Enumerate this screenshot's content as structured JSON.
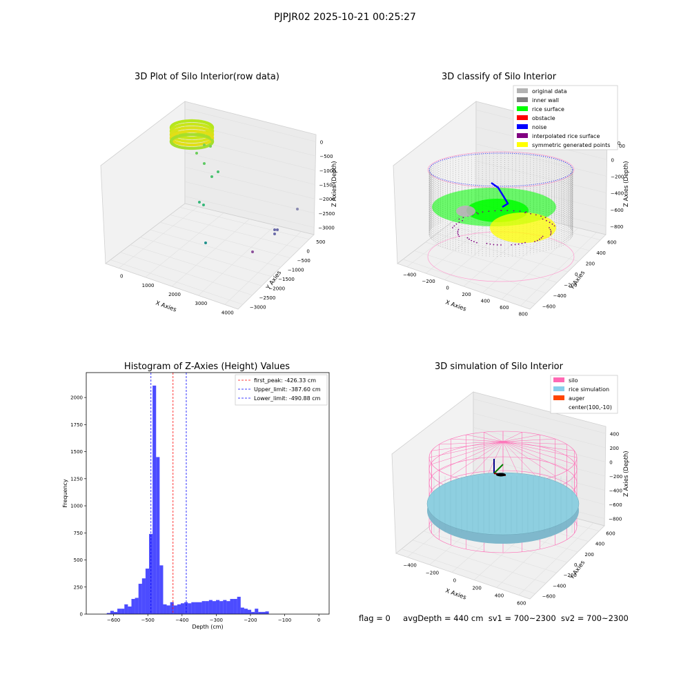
{
  "suptitle": "PJPJR02 2025-10-21 00:25:27",
  "plots": {
    "raw": {
      "title": "3D Plot of Silo Interior(row data)",
      "xlabel": "X Axies",
      "ylabel": "Y Axies",
      "zlabel": "Z Axies (Depth)",
      "xticks": [
        "0",
        "1000",
        "2000",
        "3000",
        "4000"
      ],
      "yticks": [
        "500",
        "0",
        "−500",
        "−1000",
        "−1500",
        "−2000",
        "−2500",
        "−3000"
      ],
      "zticks": [
        "0",
        "−500",
        "−1000",
        "−1500",
        "−2000",
        "−2500",
        "−3000"
      ]
    },
    "classify": {
      "title": "3D classify of Silo Interior",
      "xlabel": "X Axies",
      "ylabel": "Y Axies",
      "zlabel": "Z Axies (Depth)",
      "xticks": [
        "−400",
        "−200",
        "0",
        "200",
        "400",
        "600",
        "800"
      ],
      "yticks": [
        "600",
        "400",
        "200",
        "0",
        "−200",
        "−400",
        "−600"
      ],
      "zticks": [
        "200",
        "0",
        "−200",
        "−400",
        "−600",
        "−800"
      ],
      "ztick_top": "00",
      "legend": [
        {
          "label": "original data",
          "color": "#b3b3b3"
        },
        {
          "label": "inner wall",
          "color": "#808080"
        },
        {
          "label": "rice surface",
          "color": "#00ff00"
        },
        {
          "label": "obstacle",
          "color": "#ff0000"
        },
        {
          "label": "noise",
          "color": "#0000ff"
        },
        {
          "label": "interpolated rice surface",
          "color": "#800080"
        },
        {
          "label": "symmetric generated points",
          "color": "#ffff00"
        }
      ]
    },
    "histogram": {
      "title": "Histogram of Z-Axies (Height) Values",
      "xlabel": "Depth (cm)",
      "ylabel": "Frequency",
      "legend": [
        {
          "label": "first_peak: -426.33 cm",
          "color": "#ff0000"
        },
        {
          "label": "Upper_limit: -387.60 cm",
          "color": "#0000ff"
        },
        {
          "label": "Lower_limit: -490.88 cm",
          "color": "#0000ff"
        }
      ]
    },
    "simulation": {
      "title": "3D simulation of Silo Interior",
      "xlabel": "X Axies",
      "ylabel": "Y Axies",
      "zlabel": "Z Axies (Depth)",
      "xticks": [
        "−400",
        "−200",
        "0",
        "200",
        "400",
        "600"
      ],
      "yticks": [
        "600",
        "400",
        "200",
        "0",
        "−200",
        "−400",
        "−600"
      ],
      "zticks": [
        "400",
        "200",
        "0",
        "−200",
        "−400",
        "−600",
        "−800"
      ],
      "legend": [
        {
          "label": "silo",
          "color": "#ff69b4"
        },
        {
          "label": "rice simulation",
          "color": "#87ceeb"
        },
        {
          "label": "auger",
          "color": "#ff4500"
        },
        {
          "label": "center(100,-10)",
          "color": ""
        }
      ]
    }
  },
  "status": {
    "flag": "flag = 0",
    "avg_depth": "avgDepth = 440 cm",
    "sv1": "sv1 = 700~2300",
    "sv2": "sv2 = 700~2300"
  },
  "chart_data": [
    {
      "type": "scatter",
      "title": "3D Plot of Silo Interior(row data)",
      "xlabel": "X Axies",
      "ylabel": "Y Axies",
      "zlabel": "Z Axies (Depth)",
      "xlim": [
        -500,
        4000
      ],
      "ylim": [
        -3000,
        500
      ],
      "zlim": [
        -3000,
        0
      ],
      "series": [
        {
          "values_xyz": [
            [
              0,
              0,
              -300
            ],
            [
              100,
              -50,
              -250
            ],
            [
              200,
              0,
              -400
            ],
            [
              400,
              50,
              -700
            ],
            [
              500,
              100,
              -900
            ],
            [
              600,
              50,
              -1200
            ],
            [
              800,
              0,
              -1800
            ],
            [
              900,
              -100,
              -2000
            ],
            [
              1500,
              -300,
              -2500
            ],
            [
              3500,
              -2200,
              -1500
            ],
            [
              3600,
              -2300,
              -2800
            ],
            [
              3500,
              -2400,
              -2900
            ],
            [
              2500,
              -1800,
              -3000
            ]
          ]
        }
      ]
    },
    {
      "type": "scatter",
      "title": "3D classify of Silo Interior",
      "xlabel": "X Axies",
      "ylabel": "Y Axies",
      "zlabel": "Z Axies (Depth)",
      "xlim": [
        -400,
        800
      ],
      "ylim": [
        -600,
        600
      ],
      "zlim": [
        -800,
        200
      ],
      "series": [
        {
          "name": "original data"
        },
        {
          "name": "inner wall"
        },
        {
          "name": "rice surface"
        },
        {
          "name": "obstacle"
        },
        {
          "name": "noise"
        },
        {
          "name": "interpolated rice surface"
        },
        {
          "name": "symmetric generated points"
        }
      ]
    },
    {
      "type": "bar",
      "title": "Histogram of Z-Axies (Height) Values",
      "xlabel": "Depth (cm)",
      "ylabel": "Frequency",
      "xlim": [
        -680,
        30
      ],
      "ylim": [
        0,
        2230
      ],
      "bin_width": 10.3,
      "bin_start": -620,
      "values": [
        10,
        30,
        20,
        50,
        50,
        90,
        70,
        140,
        150,
        280,
        330,
        420,
        740,
        2110,
        1450,
        450,
        90,
        80,
        110,
        80,
        90,
        100,
        110,
        100,
        110,
        110,
        110,
        120,
        120,
        130,
        120,
        130,
        120,
        130,
        120,
        140,
        140,
        160,
        60,
        50,
        40,
        20,
        50,
        20,
        20,
        25
      ],
      "yticks": [
        0,
        250,
        500,
        750,
        1000,
        1250,
        1500,
        1750,
        2000
      ],
      "xticks": [
        -600,
        -500,
        -400,
        -300,
        -200,
        -100,
        0
      ],
      "vlines": [
        {
          "label": "first_peak: -426.33 cm",
          "x": -426.33
        },
        {
          "label": "Upper_limit: -387.60 cm",
          "x": -387.6
        },
        {
          "label": "Lower_limit: -490.88 cm",
          "x": -490.88
        }
      ]
    },
    {
      "type": "scatter",
      "title": "3D simulation of Silo Interior",
      "xlabel": "X Axies",
      "ylabel": "Y Axies",
      "zlabel": "Z Axies (Depth)",
      "xlim": [
        -400,
        600
      ],
      "ylim": [
        -600,
        600
      ],
      "zlim": [
        -800,
        400
      ],
      "series": [
        {
          "name": "silo"
        },
        {
          "name": "rice simulation"
        },
        {
          "name": "auger"
        },
        {
          "name": "center(100,-10)"
        }
      ]
    }
  ]
}
